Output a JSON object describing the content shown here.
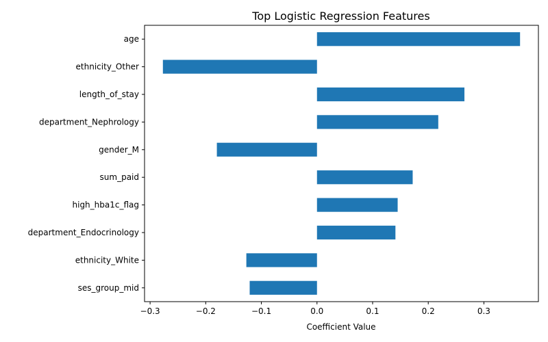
{
  "chart_data": {
    "type": "bar",
    "orientation": "horizontal",
    "title": "Top Logistic Regression Features",
    "xlabel": "Coefficient Value",
    "ylabel": "",
    "categories": [
      "age",
      "ethnicity_Other",
      "length_of_stay",
      "department_Nephrology",
      "gender_M",
      "sum_paid",
      "high_hba1c_flag",
      "department_Endocrinology",
      "ethnicity_White",
      "ses_group_mid"
    ],
    "values": [
      0.365,
      -0.277,
      0.265,
      0.218,
      -0.18,
      0.172,
      0.145,
      0.141,
      -0.127,
      -0.121
    ],
    "xlim": [
      -0.31,
      0.398
    ],
    "xticks": [
      -0.3,
      -0.2,
      -0.1,
      0.0,
      0.1,
      0.2,
      0.3
    ],
    "xtick_labels": [
      "−0.3",
      "−0.2",
      "−0.1",
      "0.0",
      "0.1",
      "0.2",
      "0.3"
    ],
    "grid": false,
    "legend": "none",
    "colors": {
      "bar": "#1f77b4",
      "axis": "#000000"
    }
  }
}
